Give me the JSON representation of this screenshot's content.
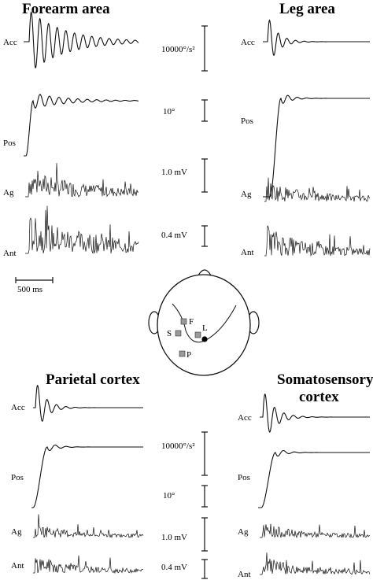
{
  "panels": {
    "forearm": {
      "title": "Forearm area"
    },
    "leg": {
      "title": "Leg area"
    },
    "parietal": {
      "title": "Parietal cortex"
    },
    "somatosensory": {
      "title_line1": "Somatosensory",
      "title_line2": "cortex"
    }
  },
  "trace_labels": {
    "acc": "Acc",
    "pos": "Pos",
    "ag": "Ag",
    "ant": "Ant"
  },
  "scale_bars": {
    "acc": "10000°/s²",
    "pos": "10°",
    "ag": "1.0 mV",
    "ant": "0.4 mV",
    "time": "500 ms"
  },
  "head_map": {
    "sites": {
      "F": "F",
      "S": "S",
      "L": "L",
      "P": "P"
    },
    "colors": {
      "square_fill": "#9a9a9a",
      "dot_fill": "#000000"
    }
  }
}
